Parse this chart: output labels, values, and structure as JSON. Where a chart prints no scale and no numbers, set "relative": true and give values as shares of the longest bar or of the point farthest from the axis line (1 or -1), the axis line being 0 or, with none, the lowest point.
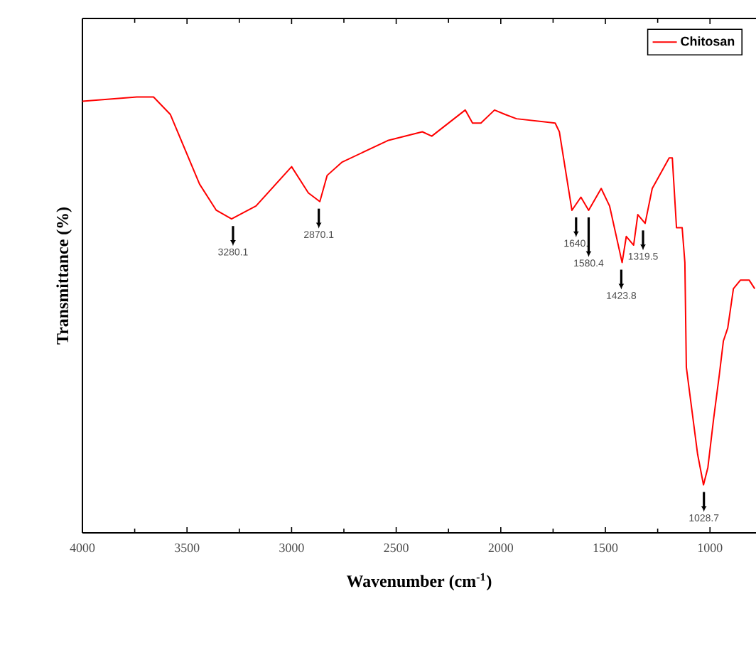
{
  "chart_data": {
    "type": "line",
    "relative": true,
    "xlabel": "Wavenumber (cm$^{-1}$)",
    "ylabel": "Transmittance (%)",
    "xlim": [
      4000,
      780
    ],
    "xticks": [
      4000,
      3500,
      3000,
      2500,
      2000,
      1500,
      1000
    ],
    "legend": "top right",
    "x": [
      4000,
      3740,
      3660,
      3580,
      3440,
      3360,
      3287,
      3170,
      3000,
      2920,
      2865,
      2830,
      2760,
      2540,
      2375,
      2330,
      2170,
      2135,
      2095,
      2030,
      1980,
      1925,
      1740,
      1720,
      1660,
      1617,
      1580,
      1520,
      1480,
      1420,
      1400,
      1365,
      1345,
      1310,
      1276,
      1195,
      1180,
      1160,
      1133,
      1120,
      1113,
      1059,
      1031,
      1010,
      983,
      956,
      936,
      915,
      888,
      854,
      813,
      786
    ],
    "series": [
      {
        "name": "Chitosan",
        "color": "#ff0000",
        "values": [
          0.99,
          1.0,
          1.0,
          0.96,
          0.8,
          0.74,
          0.72,
          0.75,
          0.84,
          0.78,
          0.76,
          0.82,
          0.85,
          0.9,
          0.92,
          0.91,
          0.97,
          0.94,
          0.94,
          0.97,
          0.96,
          0.95,
          0.94,
          0.92,
          0.74,
          0.77,
          0.74,
          0.79,
          0.75,
          0.62,
          0.68,
          0.66,
          0.73,
          0.71,
          0.79,
          0.86,
          0.86,
          0.7,
          0.7,
          0.62,
          0.38,
          0.18,
          0.11,
          0.15,
          0.26,
          0.36,
          0.44,
          0.47,
          0.56,
          0.58,
          0.58,
          0.56
        ]
      }
    ],
    "annotations": [
      {
        "text": "3280.1",
        "x": 3280,
        "y": 0.72
      },
      {
        "text": "2870.1",
        "x": 2870,
        "y": 0.76
      },
      {
        "text": "1640.",
        "x": 1640,
        "y": 0.74
      },
      {
        "text": "1580.4",
        "x": 1580,
        "y": 0.74
      },
      {
        "text": "1423.8",
        "x": 1424,
        "y": 0.62
      },
      {
        "text": "1319.5",
        "x": 1320,
        "y": 0.71
      },
      {
        "text": "1028.7",
        "x": 1029,
        "y": 0.11
      }
    ]
  }
}
